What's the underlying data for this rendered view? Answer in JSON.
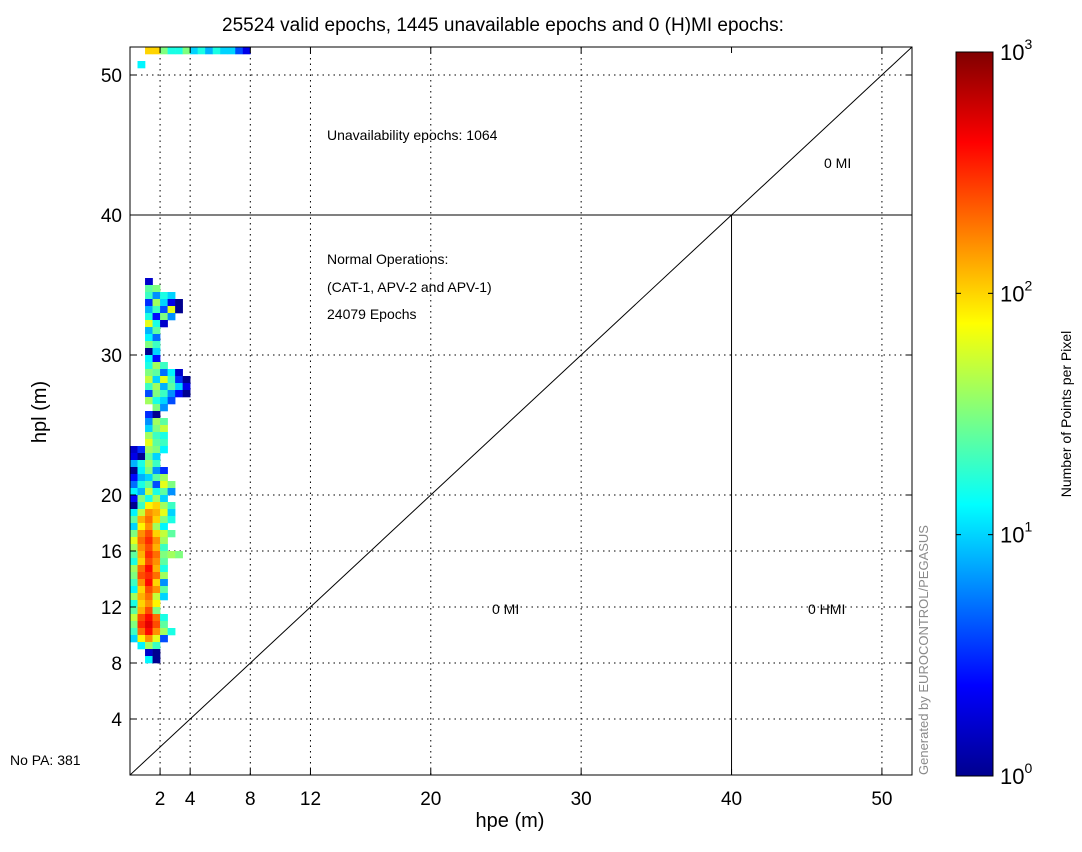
{
  "chart_data": {
    "type": "heatmap",
    "title": "25524 valid epochs, 1445 unavailable epochs and 0 (H)MI epochs:",
    "xlabel": "hpe (m)",
    "ylabel": "hpl (m)",
    "xlim": [
      0,
      52
    ],
    "ylim": [
      0,
      52
    ],
    "x_ticks": [
      2,
      4,
      8,
      12,
      20,
      30,
      40,
      50
    ],
    "y_ticks": [
      4,
      8,
      12,
      16,
      20,
      30,
      40,
      50
    ],
    "grid": true,
    "grid_style": "dotted",
    "alarm_limit": {
      "horizontal": 40,
      "vertical": 40
    },
    "diagonal": {
      "from": [
        0,
        0
      ],
      "to": [
        52,
        52
      ]
    },
    "annotations": {
      "unavailability": "Unavailability epochs: 1064",
      "normal_ops_line1": "Normal Operations:",
      "normal_ops_line2": "(CAT-1, APV-2 and APV-1)",
      "normal_ops_line3": "24079 Epochs",
      "mi_top": "0 MI",
      "mi_bottom": "0 MI",
      "hmi": "0 HMI",
      "no_pa": "No PA: 381"
    },
    "watermark": "Generated by EUROCONTROL/PEGASUS",
    "colorbar": {
      "label": "Number of Points per Pixel",
      "scale": "log",
      "range": [
        1,
        1000
      ],
      "tick_bases": [
        "10",
        "10",
        "10",
        "10"
      ],
      "tick_exponents": [
        "0",
        "1",
        "2",
        "3"
      ],
      "colormap": [
        "#00008f",
        "#0000ff",
        "#007fff",
        "#00ffff",
        "#7fff7f",
        "#ffff00",
        "#ff7f00",
        "#ff0000",
        "#800000"
      ]
    },
    "bin_size": [
      0.5,
      0.5
    ],
    "cells": [
      [
        1.25,
        51.75,
        2.0
      ],
      [
        1.75,
        51.75,
        2.0
      ],
      [
        2.25,
        51.75,
        1.5
      ],
      [
        2.75,
        51.75,
        1.2
      ],
      [
        3.25,
        51.75,
        1.2
      ],
      [
        3.75,
        51.75,
        1.5
      ],
      [
        4.25,
        51.75,
        1.0
      ],
      [
        4.75,
        51.75,
        1.2
      ],
      [
        5.25,
        51.75,
        0.9
      ],
      [
        5.75,
        51.75,
        1.2
      ],
      [
        6.25,
        51.75,
        1.0
      ],
      [
        6.75,
        51.75,
        1.0
      ],
      [
        7.25,
        51.75,
        0.6
      ],
      [
        7.75,
        51.75,
        0.3
      ],
      [
        0.75,
        50.75,
        1.1
      ],
      [
        1.25,
        35.25,
        0.2
      ],
      [
        1.25,
        34.75,
        1.4
      ],
      [
        1.75,
        34.75,
        1.5
      ],
      [
        1.25,
        34.25,
        1.3
      ],
      [
        1.75,
        34.25,
        0.8
      ],
      [
        2.25,
        34.25,
        1.2
      ],
      [
        2.75,
        34.25,
        1.0
      ],
      [
        1.25,
        33.75,
        0.5
      ],
      [
        1.75,
        33.75,
        1.6
      ],
      [
        2.25,
        33.75,
        1.0
      ],
      [
        2.75,
        33.75,
        0.3
      ],
      [
        3.25,
        33.75,
        0.0
      ],
      [
        1.25,
        33.25,
        0.9
      ],
      [
        1.75,
        33.25,
        1.3
      ],
      [
        2.25,
        33.25,
        0.6
      ],
      [
        2.75,
        33.25,
        1.8
      ],
      [
        3.25,
        33.25,
        0.0
      ],
      [
        1.25,
        32.75,
        1.2
      ],
      [
        1.75,
        32.75,
        0.4
      ],
      [
        2.25,
        32.75,
        1.5
      ],
      [
        2.75,
        32.75,
        0.8
      ],
      [
        1.25,
        32.25,
        1.8
      ],
      [
        1.75,
        32.25,
        1.2
      ],
      [
        2.25,
        32.25,
        0.2
      ],
      [
        1.25,
        31.75,
        0.9
      ],
      [
        1.75,
        31.75,
        1.4
      ],
      [
        1.25,
        31.25,
        1.1
      ],
      [
        1.75,
        31.25,
        0.7
      ],
      [
        1.25,
        30.75,
        1.5
      ],
      [
        1.75,
        30.75,
        1.3
      ],
      [
        1.25,
        30.25,
        0.0
      ],
      [
        1.75,
        30.25,
        1.0
      ],
      [
        1.25,
        29.75,
        1.1
      ],
      [
        1.75,
        29.75,
        0.4
      ],
      [
        1.25,
        29.25,
        1.2
      ],
      [
        1.75,
        29.25,
        1.6
      ],
      [
        2.25,
        29.25,
        1.3
      ],
      [
        1.25,
        28.75,
        1.5
      ],
      [
        1.75,
        28.75,
        1.4
      ],
      [
        2.25,
        28.75,
        0.7
      ],
      [
        2.75,
        28.75,
        1.1
      ],
      [
        3.25,
        28.75,
        0.2
      ],
      [
        1.25,
        28.25,
        1.7
      ],
      [
        1.75,
        28.25,
        1.0
      ],
      [
        2.25,
        28.25,
        1.8
      ],
      [
        2.75,
        28.25,
        1.3
      ],
      [
        3.25,
        28.25,
        0.5
      ],
      [
        3.75,
        28.25,
        0.0
      ],
      [
        1.25,
        27.75,
        1.3
      ],
      [
        1.75,
        27.75,
        1.6
      ],
      [
        2.25,
        27.75,
        0.9
      ],
      [
        2.75,
        27.75,
        1.4
      ],
      [
        3.25,
        27.75,
        1.0
      ],
      [
        3.75,
        27.75,
        0.3
      ],
      [
        1.25,
        27.25,
        0.6
      ],
      [
        1.75,
        27.25,
        1.5
      ],
      [
        2.25,
        27.25,
        1.3
      ],
      [
        2.75,
        27.25,
        0.8
      ],
      [
        3.25,
        27.25,
        0.4
      ],
      [
        3.75,
        27.25,
        0.0
      ],
      [
        1.25,
        26.75,
        1.6
      ],
      [
        1.75,
        26.75,
        1.2
      ],
      [
        2.25,
        26.75,
        1.0
      ],
      [
        2.75,
        26.75,
        0.6
      ],
      [
        1.75,
        26.25,
        1.5
      ],
      [
        2.25,
        26.25,
        0.8
      ],
      [
        1.25,
        25.75,
        0.5
      ],
      [
        1.75,
        25.75,
        0.0
      ],
      [
        1.25,
        25.25,
        0.8
      ],
      [
        1.75,
        25.25,
        1.6
      ],
      [
        2.25,
        25.25,
        1.4
      ],
      [
        1.25,
        24.75,
        1.0
      ],
      [
        1.75,
        24.75,
        1.5
      ],
      [
        2.25,
        24.75,
        1.7
      ],
      [
        1.25,
        24.25,
        1.6
      ],
      [
        1.75,
        24.25,
        1.3
      ],
      [
        2.25,
        24.25,
        1.2
      ],
      [
        1.25,
        23.75,
        1.8
      ],
      [
        1.75,
        23.75,
        1.4
      ],
      [
        2.25,
        23.75,
        1.3
      ],
      [
        0.25,
        23.25,
        0.2
      ],
      [
        0.75,
        23.25,
        0.5
      ],
      [
        1.25,
        23.25,
        1.6
      ],
      [
        1.75,
        23.25,
        1.5
      ],
      [
        2.25,
        23.25,
        1.1
      ],
      [
        0.25,
        22.75,
        0.3
      ],
      [
        0.75,
        22.75,
        0.0
      ],
      [
        1.25,
        22.75,
        1.4
      ],
      [
        1.75,
        22.75,
        1.0
      ],
      [
        0.25,
        22.25,
        0.9
      ],
      [
        0.75,
        22.25,
        1.2
      ],
      [
        1.25,
        22.25,
        1.6
      ],
      [
        1.75,
        22.25,
        1.3
      ],
      [
        0.25,
        21.75,
        0.0
      ],
      [
        0.75,
        21.75,
        1.1
      ],
      [
        1.25,
        21.75,
        1.5
      ],
      [
        1.75,
        21.75,
        0.8
      ],
      [
        2.25,
        21.75,
        0.5
      ],
      [
        0.25,
        21.25,
        0.4
      ],
      [
        0.75,
        21.25,
        0.9
      ],
      [
        1.25,
        21.25,
        1.0
      ],
      [
        1.75,
        21.25,
        1.4
      ],
      [
        2.25,
        21.25,
        1.6
      ],
      [
        0.25,
        20.75,
        0.7
      ],
      [
        0.75,
        20.75,
        1.2
      ],
      [
        1.25,
        20.75,
        1.4
      ],
      [
        1.75,
        20.75,
        0.6
      ],
      [
        2.25,
        20.75,
        1.8
      ],
      [
        2.75,
        20.75,
        1.5
      ],
      [
        0.25,
        20.25,
        1.1
      ],
      [
        0.75,
        20.25,
        0.9
      ],
      [
        1.25,
        20.25,
        1.7
      ],
      [
        1.75,
        20.25,
        1.2
      ],
      [
        2.25,
        20.25,
        1.4
      ],
      [
        2.75,
        20.25,
        0.8
      ],
      [
        0.25,
        19.75,
        0.4
      ],
      [
        0.75,
        19.75,
        1.5
      ],
      [
        1.25,
        19.75,
        1.2
      ],
      [
        1.75,
        19.75,
        1.6
      ],
      [
        2.25,
        19.75,
        1.0
      ],
      [
        0.25,
        19.25,
        0.0
      ],
      [
        0.75,
        19.25,
        1.3
      ],
      [
        1.25,
        19.25,
        1.9
      ],
      [
        1.75,
        19.25,
        2.0
      ],
      [
        2.25,
        19.25,
        1.6
      ],
      [
        2.75,
        19.25,
        1.3
      ],
      [
        0.25,
        18.75,
        1.1
      ],
      [
        0.75,
        18.75,
        1.7
      ],
      [
        1.25,
        18.75,
        2.2
      ],
      [
        1.75,
        18.75,
        2.1
      ],
      [
        2.25,
        18.75,
        1.8
      ],
      [
        2.75,
        18.75,
        1.0
      ],
      [
        0.25,
        18.25,
        1.4
      ],
      [
        0.75,
        18.25,
        2.1
      ],
      [
        1.25,
        18.25,
        2.3
      ],
      [
        1.75,
        18.25,
        2.0
      ],
      [
        2.25,
        18.25,
        1.5
      ],
      [
        2.75,
        18.25,
        1.2
      ],
      [
        0.25,
        17.75,
        1.0
      ],
      [
        0.75,
        17.75,
        1.9
      ],
      [
        1.25,
        17.75,
        2.2
      ],
      [
        1.75,
        17.75,
        1.6
      ],
      [
        2.25,
        17.75,
        1.1
      ],
      [
        0.25,
        17.25,
        1.5
      ],
      [
        0.75,
        17.25,
        2.2
      ],
      [
        1.25,
        17.25,
        2.4
      ],
      [
        1.75,
        17.25,
        2.0
      ],
      [
        2.25,
        17.25,
        1.7
      ],
      [
        2.75,
        17.25,
        1.4
      ],
      [
        0.25,
        16.75,
        1.8
      ],
      [
        0.75,
        16.75,
        2.3
      ],
      [
        1.25,
        16.75,
        2.5
      ],
      [
        1.75,
        16.75,
        2.2
      ],
      [
        2.25,
        16.75,
        1.6
      ],
      [
        0.25,
        16.25,
        1.6
      ],
      [
        0.75,
        16.25,
        2.2
      ],
      [
        1.25,
        16.25,
        2.4
      ],
      [
        1.75,
        16.25,
        2.1
      ],
      [
        2.25,
        16.25,
        1.3
      ],
      [
        0.25,
        15.75,
        1.4
      ],
      [
        0.75,
        15.75,
        2.1
      ],
      [
        1.25,
        15.75,
        2.5
      ],
      [
        1.75,
        15.75,
        2.3
      ],
      [
        2.25,
        15.75,
        1.5
      ],
      [
        2.75,
        15.75,
        1.6
      ],
      [
        3.25,
        15.75,
        1.5
      ],
      [
        0.25,
        15.25,
        1.2
      ],
      [
        0.75,
        15.25,
        2.0
      ],
      [
        1.25,
        15.25,
        2.4
      ],
      [
        1.75,
        15.25,
        2.2
      ],
      [
        2.25,
        15.25,
        1.4
      ],
      [
        0.25,
        14.75,
        1.6
      ],
      [
        0.75,
        14.75,
        2.3
      ],
      [
        1.25,
        14.75,
        2.6
      ],
      [
        1.75,
        14.75,
        2.1
      ],
      [
        2.25,
        14.75,
        1.2
      ],
      [
        0.25,
        14.25,
        1.5
      ],
      [
        0.75,
        14.25,
        2.4
      ],
      [
        1.25,
        14.25,
        2.5
      ],
      [
        1.75,
        14.25,
        2.3
      ],
      [
        2.25,
        14.25,
        1.6
      ],
      [
        0.25,
        13.75,
        1.3
      ],
      [
        0.75,
        13.75,
        2.2
      ],
      [
        1.25,
        13.75,
        2.6
      ],
      [
        1.75,
        13.75,
        2.0
      ],
      [
        2.25,
        13.75,
        0.8
      ],
      [
        0.25,
        13.25,
        1.1
      ],
      [
        0.75,
        13.25,
        2.0
      ],
      [
        1.25,
        13.25,
        2.4
      ],
      [
        1.75,
        13.25,
        2.2
      ],
      [
        2.25,
        13.25,
        1.4
      ],
      [
        0.25,
        12.75,
        1.6
      ],
      [
        0.75,
        12.75,
        2.1
      ],
      [
        1.25,
        12.75,
        2.3
      ],
      [
        1.75,
        12.75,
        1.7
      ],
      [
        2.25,
        12.75,
        1.0
      ],
      [
        0.25,
        12.25,
        1.2
      ],
      [
        0.75,
        12.25,
        2.0
      ],
      [
        1.25,
        12.25,
        2.2
      ],
      [
        1.75,
        12.25,
        1.9
      ],
      [
        0.25,
        11.75,
        1.4
      ],
      [
        0.75,
        11.75,
        2.1
      ],
      [
        1.25,
        11.75,
        2.4
      ],
      [
        1.75,
        11.75,
        1.5
      ],
      [
        0.25,
        11.25,
        1.7
      ],
      [
        0.75,
        11.25,
        2.4
      ],
      [
        1.25,
        11.25,
        2.6
      ],
      [
        1.75,
        11.25,
        2.3
      ],
      [
        2.25,
        11.25,
        1.2
      ],
      [
        0.25,
        10.75,
        1.5
      ],
      [
        0.75,
        10.75,
        2.5
      ],
      [
        1.25,
        10.75,
        2.7
      ],
      [
        1.75,
        10.75,
        2.4
      ],
      [
        2.25,
        10.75,
        1.4
      ],
      [
        0.25,
        10.25,
        1.3
      ],
      [
        0.75,
        10.25,
        2.3
      ],
      [
        1.25,
        10.25,
        2.6
      ],
      [
        1.75,
        10.25,
        2.2
      ],
      [
        2.25,
        10.25,
        1.6
      ],
      [
        2.75,
        10.25,
        1.2
      ],
      [
        0.25,
        9.75,
        1.0
      ],
      [
        0.75,
        9.75,
        1.9
      ],
      [
        1.25,
        9.75,
        2.2
      ],
      [
        1.75,
        9.75,
        1.8
      ],
      [
        2.25,
        9.75,
        0.6
      ],
      [
        0.75,
        9.25,
        1.1
      ],
      [
        1.25,
        9.25,
        1.6
      ],
      [
        1.75,
        9.25,
        1.3
      ],
      [
        1.25,
        8.75,
        0.2
      ],
      [
        1.75,
        8.75,
        0.0
      ],
      [
        1.25,
        8.25,
        1.1
      ],
      [
        1.75,
        8.25,
        0.0
      ]
    ]
  }
}
